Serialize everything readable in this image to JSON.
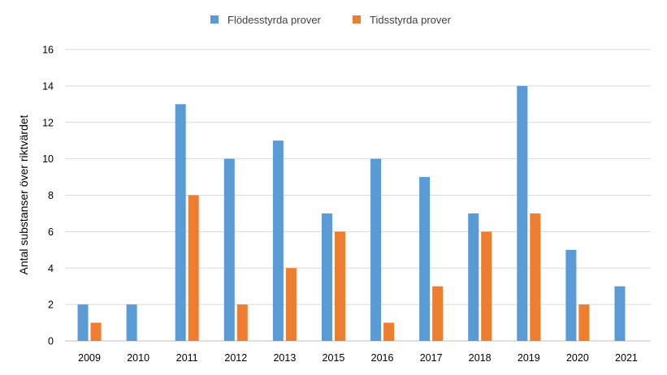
{
  "chart_data": {
    "type": "bar",
    "title": "",
    "xlabel": "",
    "ylabel": "Antal substanser över riktvärdet",
    "ylim": [
      0,
      16
    ],
    "yticks": [
      0,
      2,
      4,
      6,
      8,
      10,
      12,
      14,
      16
    ],
    "grid": true,
    "legend_position": "top-center",
    "categories": [
      "2009",
      "2010",
      "2011",
      "2012",
      "2013",
      "2015",
      "2016",
      "2017",
      "2018",
      "2019",
      "2020",
      "2021"
    ],
    "series": [
      {
        "name": "Flödesstyrda prover",
        "color": "#5B9BD5",
        "values": [
          2,
          2,
          13,
          10,
          11,
          7,
          10,
          9,
          7,
          14,
          5,
          3
        ]
      },
      {
        "name": "Tidsstyrda prover",
        "color": "#ED7D31",
        "values": [
          1,
          0,
          8,
          2,
          4,
          6,
          1,
          3,
          6,
          7,
          2,
          0
        ]
      }
    ]
  }
}
